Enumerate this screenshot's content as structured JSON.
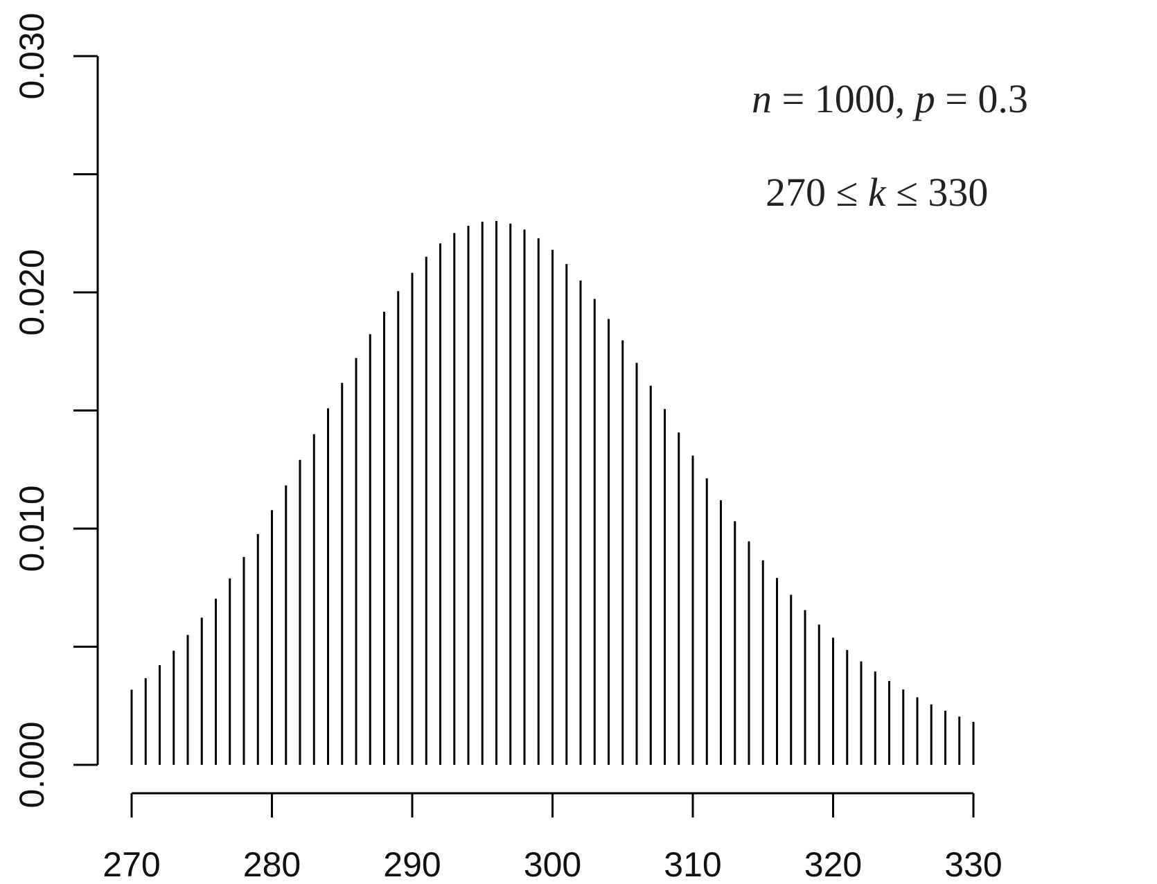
{
  "chart_data": {
    "type": "bar",
    "style": "spikes",
    "x_start": 270,
    "x_end": 330,
    "y": [
      0.00318,
      0.00367,
      0.00422,
      0.00483,
      0.0055,
      0.00623,
      0.00703,
      0.00789,
      0.0088,
      0.00977,
      0.01078,
      0.01183,
      0.01291,
      0.014,
      0.01509,
      0.01617,
      0.01722,
      0.01823,
      0.01918,
      0.02005,
      0.02083,
      0.02151,
      0.02207,
      0.02251,
      0.02282,
      0.02299,
      0.02302,
      0.02291,
      0.02266,
      0.02229,
      0.0218,
      0.0212,
      0.0205,
      0.01972,
      0.01887,
      0.01797,
      0.01702,
      0.01605,
      0.01506,
      0.01407,
      0.01309,
      0.01213,
      0.0112,
      0.01031,
      0.00946,
      0.00866,
      0.00791,
      0.0072,
      0.00655,
      0.00594,
      0.00538,
      0.00486,
      0.00438,
      0.00395,
      0.00355,
      0.00319,
      0.00286,
      0.00256,
      0.00229,
      0.00204,
      0.00182
    ],
    "ylim": [
      0,
      0.03
    ],
    "y_ticks": [
      0,
      0.005,
      0.01,
      0.015,
      0.02,
      0.025,
      0.03
    ],
    "y_tick_labels": [
      "0.000",
      "",
      "0.010",
      "",
      "0.020",
      "",
      "0.030"
    ],
    "x_ticks": [
      270,
      280,
      290,
      300,
      310,
      320,
      330
    ],
    "x_tick_labels": [
      "270",
      "280",
      "290",
      "300",
      "310",
      "320",
      "330"
    ],
    "annotations": {
      "line1": {
        "n_sym": "n",
        "eq1": " = 1000, ",
        "p_sym": "p",
        "eq2": " = 0.3"
      },
      "line2": {
        "pre": "270 ≤ ",
        "k_sym": "k",
        "post": " ≤ 330"
      }
    },
    "grid": false,
    "legend": "none",
    "color": "#000000"
  }
}
